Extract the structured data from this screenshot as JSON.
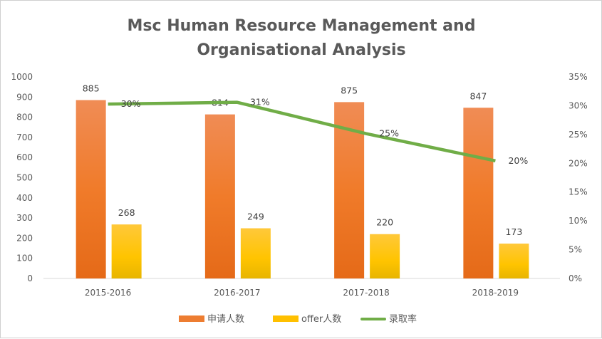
{
  "chart_data": {
    "type": "bar",
    "title": [
      "Msc Human Resource Management and",
      "Organisational Analysis"
    ],
    "categories": [
      "2015-2016",
      "2016-2017",
      "2017-2018",
      "2018-2019"
    ],
    "series": [
      {
        "name": "申请人数",
        "type": "bar",
        "axis": "left",
        "values": [
          885,
          814,
          875,
          847
        ],
        "labels": [
          "885",
          "814",
          "875",
          "847"
        ],
        "color": "#ED7D31"
      },
      {
        "name": "offer人数",
        "type": "bar",
        "axis": "left",
        "values": [
          268,
          249,
          220,
          173
        ],
        "labels": [
          "268",
          "249",
          "220",
          "173"
        ],
        "color": "#FFC000"
      },
      {
        "name": "录取率",
        "type": "line",
        "axis": "right",
        "values": [
          0.3028,
          0.3059,
          0.2514,
          0.2043
        ],
        "labels": [
          "30%",
          "31%",
          "25%",
          "20%"
        ],
        "color": "#70AD47"
      }
    ],
    "left_axis": {
      "ylim": [
        0,
        1000
      ],
      "ticks": [
        "0",
        "100",
        "200",
        "300",
        "400",
        "500",
        "600",
        "700",
        "800",
        "900",
        "1000"
      ]
    },
    "right_axis": {
      "ylim": [
        0,
        0.35
      ],
      "ticks": [
        "0%",
        "5%",
        "10%",
        "15%",
        "20%",
        "25%",
        "30%",
        "35%"
      ]
    },
    "grid": false,
    "legend": "bottom"
  }
}
